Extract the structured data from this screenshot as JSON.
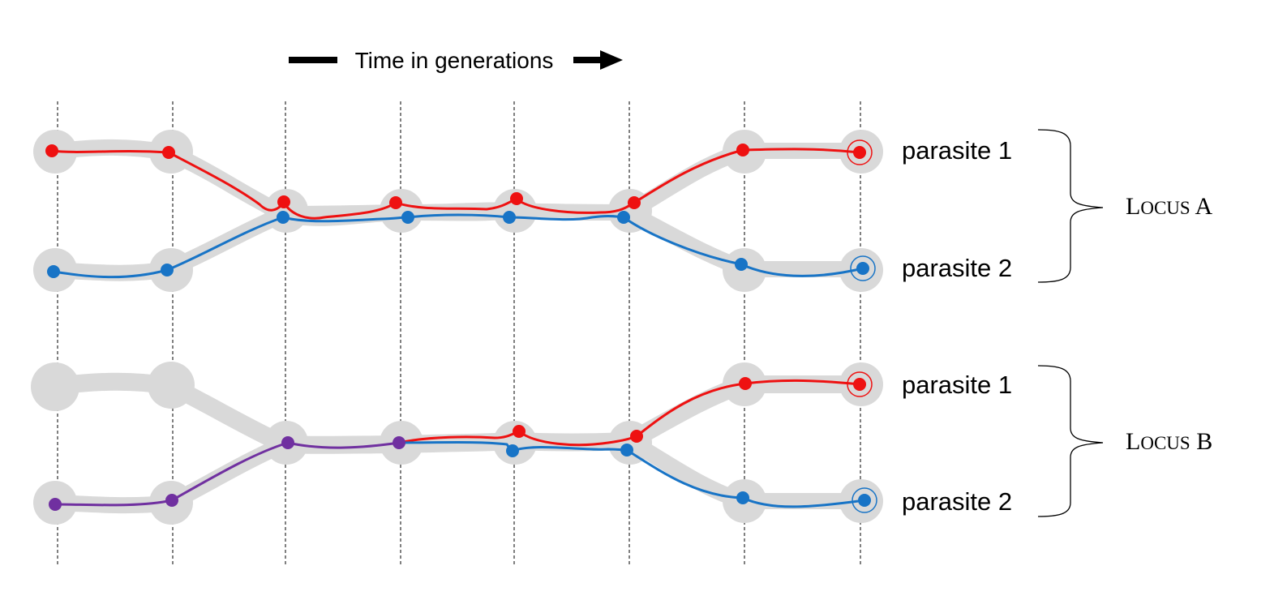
{
  "header": {
    "time_label": "Time in generations"
  },
  "labels": {
    "parasite_1": "parasite 1",
    "parasite_2": "parasite 2"
  },
  "loci": [
    {
      "cap": "L",
      "small": "OCUS",
      "suffix": " A"
    },
    {
      "cap": "L",
      "small": "OCUS",
      "suffix": " B"
    }
  ],
  "colors": {
    "parasite_1": "#ee1111",
    "parasite_2": "#1874c6",
    "merged": "#7030a0",
    "shadow": "#d9d9d9"
  }
}
